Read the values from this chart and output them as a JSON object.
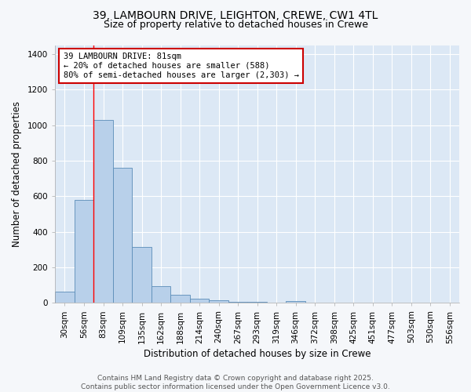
{
  "title_line1": "39, LAMBOURN DRIVE, LEIGHTON, CREWE, CW1 4TL",
  "title_line2": "Size of property relative to detached houses in Crewe",
  "xlabel": "Distribution of detached houses by size in Crewe",
  "ylabel": "Number of detached properties",
  "categories": [
    "30sqm",
    "56sqm",
    "83sqm",
    "109sqm",
    "135sqm",
    "162sqm",
    "188sqm",
    "214sqm",
    "240sqm",
    "267sqm",
    "293sqm",
    "319sqm",
    "346sqm",
    "372sqm",
    "398sqm",
    "425sqm",
    "451sqm",
    "477sqm",
    "503sqm",
    "530sqm",
    "556sqm"
  ],
  "values": [
    65,
    580,
    1030,
    760,
    315,
    95,
    45,
    22,
    15,
    8,
    8,
    0,
    10,
    0,
    0,
    0,
    0,
    0,
    0,
    0,
    0
  ],
  "bar_color": "#b8d0ea",
  "bar_edge_color": "#5b8db8",
  "red_line_index": 2,
  "annotation_text": "39 LAMBOURN DRIVE: 81sqm\n← 20% of detached houses are smaller (588)\n80% of semi-detached houses are larger (2,303) →",
  "annotation_box_facecolor": "#ffffff",
  "annotation_box_edgecolor": "#cc0000",
  "ylim": [
    0,
    1450
  ],
  "yticks": [
    0,
    200,
    400,
    600,
    800,
    1000,
    1200,
    1400
  ],
  "figure_facecolor": "#f5f7fa",
  "axes_facecolor": "#dce8f5",
  "grid_color": "#ffffff",
  "title_fontsize": 10,
  "subtitle_fontsize": 9,
  "axis_label_fontsize": 8.5,
  "tick_fontsize": 7.5,
  "annotation_fontsize": 7.5,
  "footer_fontsize": 6.5,
  "footer_line1": "Contains HM Land Registry data © Crown copyright and database right 2025.",
  "footer_line2": "Contains public sector information licensed under the Open Government Licence v3.0."
}
